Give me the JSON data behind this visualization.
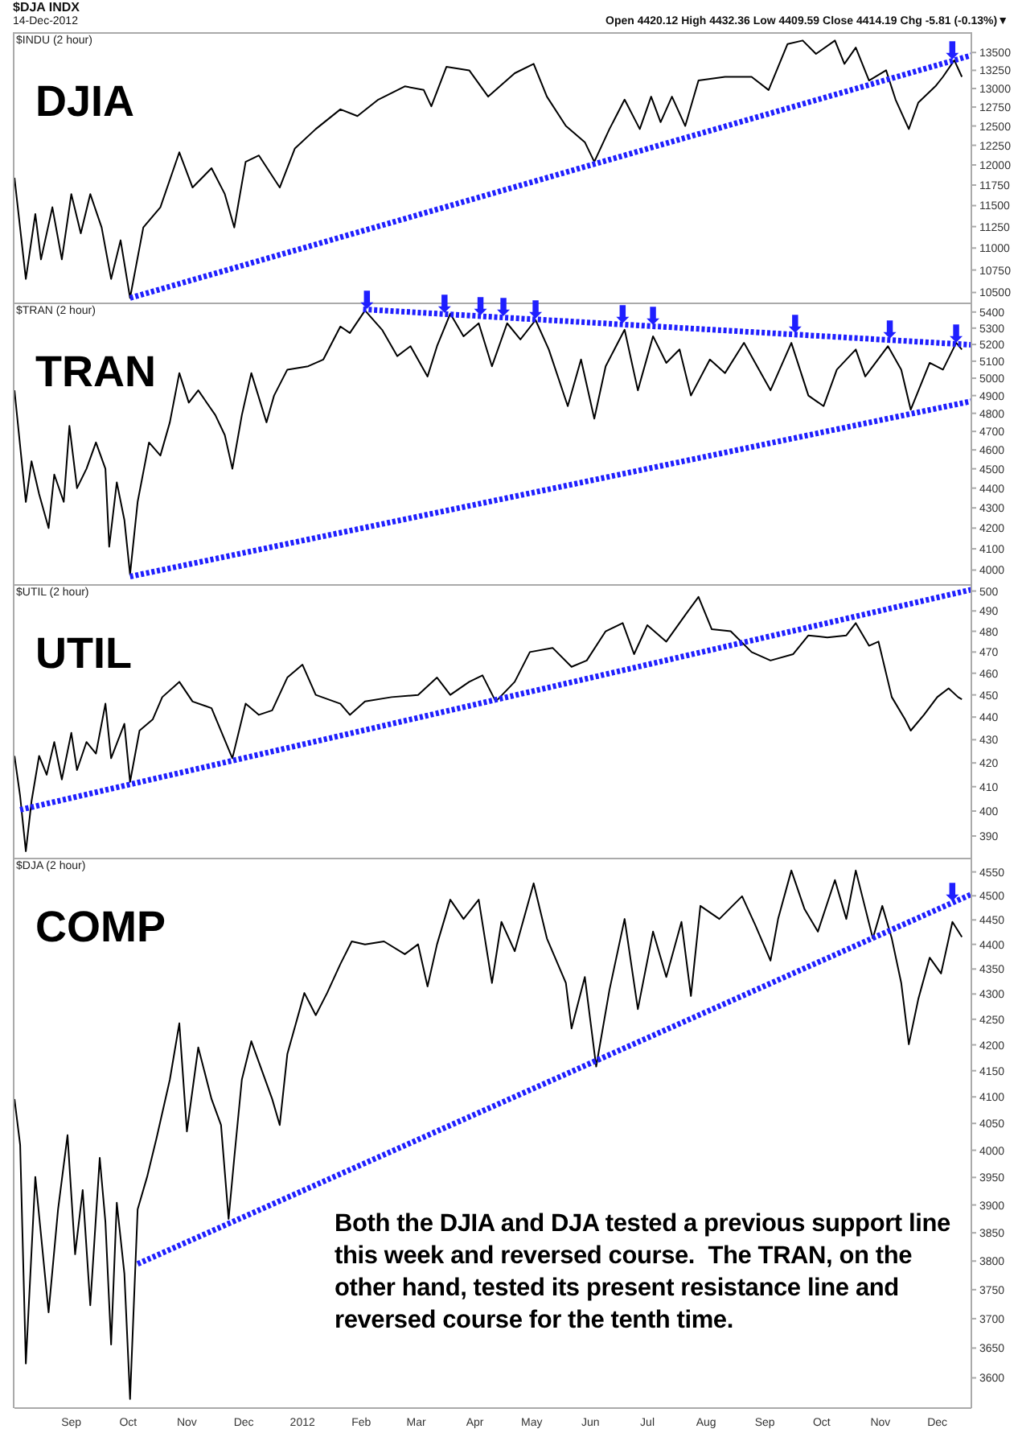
{
  "chart_data": [
    {
      "type": "line",
      "title": "DJIA",
      "subtitle": "$INDU (2 hour)",
      "log": true,
      "tick_labels": "y",
      "annotations": [
        "$DJA INDX",
        "14-Dec-2012",
        "Open 4420.12 High 4432.36 Low 4409.59 Close 4414.19 Chg -5.81 (-0.13%)▼",
        {
          "text": "⬇",
          "x": "2012-12-09",
          "y": 13390
        }
      ],
      "xlim": [
        "2011-08-02",
        "2012-12-19"
      ],
      "ylim": [
        10390,
        13790
      ],
      "yticks": [
        10500,
        10750,
        11000,
        11250,
        11500,
        11750,
        12000,
        12250,
        12500,
        12750,
        13000,
        13250,
        13500
      ],
      "series": [
        {
          "color": "#000000",
          "x": [
            "2011-08-02",
            "2011-08-08",
            "2011-08-13",
            "2011-08-16",
            "2011-08-22",
            "2011-08-27",
            "2011-09-01",
            "2011-09-06",
            "2011-09-11",
            "2011-09-17",
            "2011-09-22",
            "2011-09-27",
            "2011-10-02",
            "2011-10-09",
            "2011-10-18",
            "2011-10-28",
            "2011-11-04",
            "2011-11-14",
            "2011-11-21",
            "2011-11-26",
            "2011-12-02",
            "2011-12-09",
            "2011-12-20",
            "2011-12-28",
            "2012-01-08",
            "2012-01-21",
            "2012-01-30",
            "2012-02-10",
            "2012-02-24",
            "2012-03-05",
            "2012-03-09",
            "2012-03-17",
            "2012-03-29",
            "2012-04-08",
            "2012-04-22",
            "2012-05-02",
            "2012-05-09",
            "2012-05-19",
            "2012-05-29",
            "2012-06-03",
            "2012-06-11",
            "2012-06-19",
            "2012-06-27",
            "2012-07-03",
            "2012-07-08",
            "2012-07-14",
            "2012-07-21",
            "2012-07-28",
            "2012-08-11",
            "2012-08-25",
            "2012-09-03",
            "2012-09-13",
            "2012-09-21",
            "2012-09-28",
            "2012-10-08",
            "2012-10-13",
            "2012-10-19",
            "2012-10-26",
            "2012-11-04",
            "2012-11-09",
            "2012-11-16",
            "2012-11-21",
            "2012-11-30",
            "2012-12-04",
            "2012-12-10",
            "2012-12-14"
          ],
          "values": [
            11840,
            10650,
            11400,
            10870,
            11480,
            10870,
            11640,
            11170,
            11640,
            11240,
            10650,
            11090,
            10440,
            11240,
            11480,
            12160,
            11720,
            11960,
            11640,
            11240,
            12040,
            12120,
            11720,
            12210,
            12460,
            12720,
            12630,
            12850,
            13030,
            12980,
            12760,
            13300,
            13250,
            12890,
            13210,
            13340,
            12890,
            12500,
            12290,
            12040,
            12460,
            12850,
            12460,
            12890,
            12550,
            12890,
            12500,
            13110,
            13160,
            13160,
            12980,
            13620,
            13670,
            13480,
            13670,
            13340,
            13570,
            13110,
            13250,
            12850,
            12460,
            12810,
            13030,
            13160,
            13390,
            13160
          ]
        },
        {
          "type": "line",
          "color": "#1f1fff",
          "line_style": "dotted",
          "x": [
            "2011-10-02",
            "2012-12-19"
          ],
          "values": [
            10440,
            13460
          ]
        }
      ]
    },
    {
      "type": "line",
      "title": "TRAN",
      "subtitle": "$TRAN (2 hour)",
      "log": true,
      "tick_labels": "y",
      "annotations": [
        {
          "text": "⬇",
          "x": "2012-02-04",
          "y": 5414
        },
        {
          "text": "⬇",
          "x": "2012-03-16",
          "y": 5388
        },
        {
          "text": "⬇",
          "x": "2012-04-04",
          "y": 5376
        },
        {
          "text": "⬇",
          "x": "2012-04-16",
          "y": 5368
        },
        {
          "text": "⬇",
          "x": "2012-05-03",
          "y": 5356
        },
        {
          "text": "⬇",
          "x": "2012-06-18",
          "y": 5324
        },
        {
          "text": "⬇",
          "x": "2012-07-04",
          "y": 5312
        },
        {
          "text": "⬇",
          "x": "2012-09-17",
          "y": 5263
        },
        {
          "text": "⬇",
          "x": "2012-11-06",
          "y": 5228
        },
        {
          "text": "⬇",
          "x": "2012-12-11",
          "y": 5204
        }
      ],
      "xlim": [
        "2011-08-02",
        "2012-12-19"
      ],
      "ylim": [
        3935,
        5460
      ],
      "yticks": [
        4000,
        4100,
        4200,
        4300,
        4400,
        4500,
        4600,
        4700,
        4800,
        4900,
        5000,
        5100,
        5200,
        5300,
        5400
      ],
      "series": [
        {
          "color": "#000000",
          "x": [
            "2011-08-02",
            "2011-08-08",
            "2011-08-11",
            "2011-08-15",
            "2011-08-20",
            "2011-08-23",
            "2011-08-28",
            "2011-08-31",
            "2011-09-04",
            "2011-09-09",
            "2011-09-14",
            "2011-09-19",
            "2011-09-21",
            "2011-09-25",
            "2011-09-29",
            "2011-10-02",
            "2011-10-06",
            "2011-10-12",
            "2011-10-18",
            "2011-10-23",
            "2011-10-28",
            "2011-11-02",
            "2011-11-07",
            "2011-11-16",
            "2011-11-21",
            "2011-11-25",
            "2011-11-30",
            "2011-12-05",
            "2011-12-13",
            "2011-12-17",
            "2011-12-24",
            "2012-01-04",
            "2012-01-12",
            "2012-01-21",
            "2012-01-26",
            "2012-02-03",
            "2012-02-12",
            "2012-02-20",
            "2012-02-27",
            "2012-03-07",
            "2012-03-12",
            "2012-03-19",
            "2012-03-26",
            "2012-04-03",
            "2012-04-10",
            "2012-04-18",
            "2012-04-25",
            "2012-05-03",
            "2012-05-10",
            "2012-05-20",
            "2012-05-27",
            "2012-06-03",
            "2012-06-09",
            "2012-06-19",
            "2012-06-26",
            "2012-07-04",
            "2012-07-11",
            "2012-07-18",
            "2012-07-24",
            "2012-08-03",
            "2012-08-11",
            "2012-08-21",
            "2012-09-04",
            "2012-09-15",
            "2012-09-24",
            "2012-10-02",
            "2012-10-09",
            "2012-10-19",
            "2012-10-24",
            "2012-11-05",
            "2012-11-12",
            "2012-11-17",
            "2012-11-27",
            "2012-12-04",
            "2012-12-11",
            "2012-12-14"
          ],
          "values": [
            4930,
            4330,
            4540,
            4370,
            4200,
            4470,
            4330,
            4730,
            4400,
            4500,
            4640,
            4500,
            4110,
            4430,
            4240,
            3980,
            4330,
            4640,
            4570,
            4750,
            5030,
            4860,
            4930,
            4790,
            4680,
            4500,
            4790,
            5030,
            4750,
            4900,
            5050,
            5070,
            5110,
            5310,
            5270,
            5410,
            5290,
            5130,
            5190,
            5010,
            5190,
            5390,
            5250,
            5330,
            5070,
            5330,
            5230,
            5350,
            5170,
            4840,
            5110,
            4770,
            5070,
            5290,
            4930,
            5250,
            5090,
            5170,
            4900,
            5110,
            5030,
            5210,
            4930,
            5210,
            4900,
            4840,
            5050,
            5170,
            5010,
            5190,
            5050,
            4820,
            5090,
            5050,
            5210,
            5170
          ]
        },
        {
          "type": "line",
          "color": "#1f1fff",
          "line_style": "dotted",
          "x": [
            "2012-02-02",
            "2012-12-19"
          ],
          "values": [
            5417,
            5198
          ]
        },
        {
          "type": "line",
          "color": "#1f1fff",
          "line_style": "dotted",
          "x": [
            "2011-10-02",
            "2012-12-19"
          ],
          "values": [
            3970,
            4868
          ]
        }
      ]
    },
    {
      "type": "line",
      "title": "UTIL",
      "subtitle": "$UTIL (2 hour)",
      "log": true,
      "tick_labels": "y",
      "xlim": [
        "2011-08-02",
        "2012-12-19"
      ],
      "ylim": [
        381.5,
        503.5
      ],
      "yticks": [
        390,
        400,
        410,
        420,
        430,
        440,
        450,
        460,
        470,
        480,
        490,
        500
      ],
      "series": [
        {
          "color": "#000000",
          "x": [
            "2011-08-02",
            "2011-08-05",
            "2011-08-08",
            "2011-08-11",
            "2011-08-15",
            "2011-08-19",
            "2011-08-23",
            "2011-08-27",
            "2011-09-01",
            "2011-09-04",
            "2011-09-09",
            "2011-09-14",
            "2011-09-19",
            "2011-09-22",
            "2011-09-29",
            "2011-10-02",
            "2011-10-07",
            "2011-10-14",
            "2011-10-19",
            "2011-10-28",
            "2011-11-04",
            "2011-11-14",
            "2011-11-25",
            "2011-12-02",
            "2011-12-09",
            "2011-12-16",
            "2011-12-24",
            "2012-01-01",
            "2012-01-08",
            "2012-01-21",
            "2012-01-26",
            "2012-02-03",
            "2012-02-17",
            "2012-03-02",
            "2012-03-12",
            "2012-03-19",
            "2012-03-29",
            "2012-04-05",
            "2012-04-12",
            "2012-04-22",
            "2012-04-30",
            "2012-05-12",
            "2012-05-22",
            "2012-05-30",
            "2012-06-09",
            "2012-06-18",
            "2012-06-24",
            "2012-07-01",
            "2012-07-11",
            "2012-07-21",
            "2012-07-28",
            "2012-08-04",
            "2012-08-14",
            "2012-08-25",
            "2012-09-04",
            "2012-09-16",
            "2012-09-24",
            "2012-10-04",
            "2012-10-14",
            "2012-10-19",
            "2012-10-26",
            "2012-10-31",
            "2012-11-07",
            "2012-11-14",
            "2012-11-17",
            "2012-11-24",
            "2012-12-01",
            "2012-12-07",
            "2012-12-12",
            "2012-12-14"
          ],
          "values": [
            423,
            406,
            384,
            404,
            423,
            415,
            429,
            413,
            433,
            417,
            429,
            424,
            446,
            422,
            437,
            412,
            434,
            439,
            449,
            456,
            447,
            444,
            422,
            446,
            441,
            443,
            458,
            464,
            450,
            446,
            441,
            447,
            449,
            450,
            458,
            450,
            456,
            459,
            447,
            456,
            470,
            472,
            463,
            466,
            480,
            484,
            469,
            483,
            475,
            488,
            497,
            481,
            480,
            470,
            466,
            469,
            478,
            477,
            478,
            484,
            473,
            475,
            449,
            439,
            434,
            441,
            449,
            453,
            449,
            448
          ]
        },
        {
          "type": "line",
          "color": "#1f1fff",
          "line_style": "dotted",
          "x": [
            "2011-08-05",
            "2012-12-19"
          ],
          "values": [
            400.5,
            500.7
          ]
        }
      ]
    },
    {
      "type": "line",
      "title": "COMP",
      "subtitle": "$DJA (2 hour)",
      "log": true,
      "annotations": [
        "Both the DJIA and DJA tested a previous support line this week and reversed course.  The TRAN, on the other hand, tested its present resistance line and reversed course for the tenth time.",
        {
          "text": "⬇",
          "x": "2012-12-09",
          "y": 4487
        }
      ],
      "xlim": [
        "2011-08-02",
        "2012-12-19"
      ],
      "ylim": [
        3550,
        4580
      ],
      "xticks": [
        {
          "value": "2011-09-01",
          "label": "Sep"
        },
        {
          "value": "2011-10-01",
          "label": "Oct"
        },
        {
          "value": "2011-11-01",
          "label": "Nov"
        },
        {
          "value": "2011-12-01",
          "label": "Dec"
        },
        {
          "value": "2012-01-01",
          "label": "2012"
        },
        {
          "value": "2012-02-01",
          "label": "Feb"
        },
        {
          "value": "2012-03-01",
          "label": "Mar"
        },
        {
          "value": "2012-04-01",
          "label": "Apr"
        },
        {
          "value": "2012-05-01",
          "label": "May"
        },
        {
          "value": "2012-06-01",
          "label": "Jun"
        },
        {
          "value": "2012-07-01",
          "label": "Jul"
        },
        {
          "value": "2012-08-01",
          "label": "Aug"
        },
        {
          "value": "2012-09-01",
          "label": "Sep"
        },
        {
          "value": "2012-10-01",
          "label": "Oct"
        },
        {
          "value": "2012-11-01",
          "label": "Nov"
        },
        {
          "value": "2012-12-01",
          "label": "Dec"
        }
      ],
      "yticks": [
        3600,
        3650,
        3700,
        3750,
        3800,
        3850,
        3900,
        3950,
        4000,
        4050,
        4100,
        4150,
        4200,
        4250,
        4300,
        4350,
        4400,
        4450,
        4500,
        4550
      ],
      "series": [
        {
          "color": "#000000",
          "x": [
            "2011-08-02",
            "2011-08-05",
            "2011-08-08",
            "2011-08-13",
            "2011-08-20",
            "2011-08-25",
            "2011-08-30",
            "2011-09-03",
            "2011-09-07",
            "2011-09-11",
            "2011-09-16",
            "2011-09-19",
            "2011-09-22",
            "2011-09-25",
            "2011-09-29",
            "2011-10-02",
            "2011-10-06",
            "2011-10-11",
            "2011-10-16",
            "2011-10-23",
            "2011-10-28",
            "2011-11-01",
            "2011-11-07",
            "2011-11-14",
            "2011-11-19",
            "2011-11-23",
            "2011-11-26",
            "2011-11-30",
            "2011-12-05",
            "2011-12-16",
            "2011-12-20",
            "2011-12-24",
            "2012-01-02",
            "2012-01-08",
            "2012-01-14",
            "2012-01-21",
            "2012-01-27",
            "2012-02-03",
            "2012-02-13",
            "2012-02-24",
            "2012-03-02",
            "2012-03-07",
            "2012-03-12",
            "2012-03-19",
            "2012-03-26",
            "2012-04-03",
            "2012-04-10",
            "2012-04-15",
            "2012-04-22",
            "2012-05-02",
            "2012-05-09",
            "2012-05-19",
            "2012-05-22",
            "2012-05-29",
            "2012-06-04",
            "2012-06-11",
            "2012-06-19",
            "2012-06-26",
            "2012-07-04",
            "2012-07-11",
            "2012-07-19",
            "2012-07-24",
            "2012-07-29",
            "2012-08-08",
            "2012-08-20",
            "2012-08-27",
            "2012-09-04",
            "2012-09-08",
            "2012-09-15",
            "2012-09-22",
            "2012-09-29",
            "2012-10-08",
            "2012-10-14",
            "2012-10-19",
            "2012-10-28",
            "2012-11-02",
            "2012-11-07",
            "2012-11-12",
            "2012-11-16",
            "2012-11-21",
            "2012-11-27",
            "2012-12-03",
            "2012-12-09",
            "2012-12-14"
          ],
          "values": [
            4096,
            4010,
            3624,
            3951,
            3711,
            3892,
            4028,
            3812,
            3927,
            3723,
            3986,
            3869,
            3656,
            3904,
            3778,
            3565,
            3892,
            3951,
            4023,
            4133,
            4242,
            4035,
            4195,
            4096,
            4047,
            3875,
            3986,
            4133,
            4207,
            4096,
            4047,
            4182,
            4302,
            4258,
            4302,
            4360,
            4406,
            4400,
            4406,
            4380,
            4400,
            4315,
            4400,
            4492,
            4452,
            4492,
            4322,
            4446,
            4386,
            4526,
            4412,
            4322,
            4232,
            4334,
            4158,
            4308,
            4452,
            4270,
            4426,
            4334,
            4446,
            4296,
            4479,
            4452,
            4499,
            4439,
            4367,
            4452,
            4553,
            4472,
            4426,
            4533,
            4452,
            4553,
            4412,
            4479,
            4412,
            4322,
            4201,
            4290,
            4373,
            4341,
            4446,
            4415
          ]
        },
        {
          "type": "line",
          "color": "#1f1fff",
          "line_style": "dotted",
          "x": [
            "2011-10-06",
            "2012-12-19"
          ],
          "values": [
            3795,
            4503
          ]
        }
      ]
    }
  ]
}
